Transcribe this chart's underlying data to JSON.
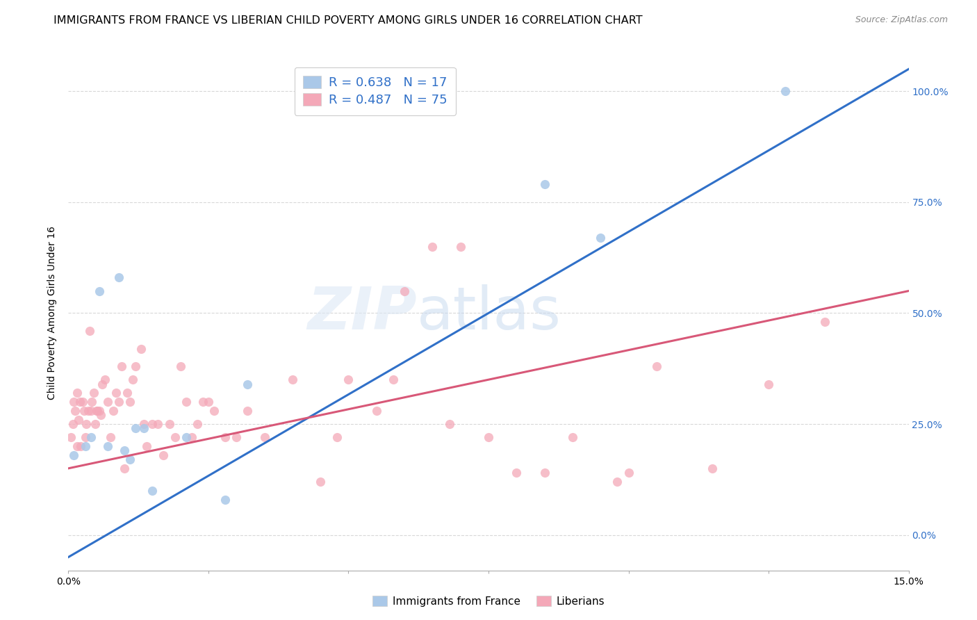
{
  "title": "IMMIGRANTS FROM FRANCE VS LIBERIAN CHILD POVERTY AMONG GIRLS UNDER 16 CORRELATION CHART",
  "source": "Source: ZipAtlas.com",
  "ylabel": "Child Poverty Among Girls Under 16",
  "xlim": [
    0.0,
    15.0
  ],
  "ylim": [
    -8.0,
    108.0
  ],
  "xticks": [
    0.0,
    2.5,
    5.0,
    7.5,
    10.0,
    12.5,
    15.0
  ],
  "yticks": [
    0.0,
    25.0,
    50.0,
    75.0,
    100.0
  ],
  "ytick_labels_right": [
    "0.0%",
    "25.0%",
    "50.0%",
    "75.0%",
    "100.0%"
  ],
  "xtick_labels": [
    "0.0%",
    "",
    "",
    "",
    "",
    "",
    "15.0%"
  ],
  "blue_R": 0.638,
  "blue_N": 17,
  "pink_R": 0.487,
  "pink_N": 75,
  "blue_color": "#aac8e8",
  "blue_line_color": "#3070c8",
  "pink_color": "#f4a8b8",
  "pink_line_color": "#d85878",
  "legend_blue_label": "Immigrants from France",
  "legend_pink_label": "Liberians",
  "blue_scatter_x": [
    0.1,
    0.3,
    0.4,
    0.55,
    0.7,
    0.9,
    1.0,
    1.1,
    1.2,
    1.35,
    1.5,
    2.1,
    2.8,
    3.2,
    8.5,
    9.5,
    12.8
  ],
  "blue_scatter_y": [
    18,
    20,
    22,
    55,
    20,
    58,
    19,
    17,
    24,
    24,
    10,
    22,
    8,
    34,
    79,
    67,
    100
  ],
  "pink_scatter_x": [
    0.05,
    0.08,
    0.1,
    0.12,
    0.15,
    0.15,
    0.18,
    0.2,
    0.22,
    0.25,
    0.28,
    0.3,
    0.32,
    0.35,
    0.38,
    0.4,
    0.42,
    0.45,
    0.48,
    0.5,
    0.52,
    0.55,
    0.58,
    0.6,
    0.65,
    0.7,
    0.75,
    0.8,
    0.85,
    0.9,
    0.95,
    1.0,
    1.05,
    1.1,
    1.15,
    1.2,
    1.3,
    1.35,
    1.4,
    1.5,
    1.6,
    1.7,
    1.8,
    1.9,
    2.0,
    2.1,
    2.2,
    2.3,
    2.4,
    2.5,
    2.6,
    2.8,
    3.0,
    3.2,
    3.5,
    4.0,
    4.5,
    5.0,
    5.5,
    6.0,
    6.5,
    7.5,
    8.0,
    9.0,
    10.0,
    10.5,
    11.5,
    12.5,
    13.5,
    4.8,
    5.8,
    6.8,
    7.0,
    8.5,
    9.8
  ],
  "pink_scatter_y": [
    22,
    25,
    30,
    28,
    32,
    20,
    26,
    30,
    20,
    30,
    28,
    22,
    25,
    28,
    46,
    28,
    30,
    32,
    25,
    28,
    28,
    28,
    27,
    34,
    35,
    30,
    22,
    28,
    32,
    30,
    38,
    15,
    32,
    30,
    35,
    38,
    42,
    25,
    20,
    25,
    25,
    18,
    25,
    22,
    38,
    30,
    22,
    25,
    30,
    30,
    28,
    22,
    22,
    28,
    22,
    35,
    12,
    35,
    28,
    55,
    65,
    22,
    14,
    22,
    14,
    38,
    15,
    34,
    48,
    22,
    35,
    25,
    65,
    14,
    12
  ],
  "watermark_zip": "ZIP",
  "watermark_atlas": "atlas",
  "background_color": "#ffffff",
  "grid_color": "#d8d8d8",
  "title_fontsize": 11.5,
  "axis_label_fontsize": 10,
  "tick_fontsize": 10,
  "legend_fontsize": 13,
  "marker_size": 90
}
